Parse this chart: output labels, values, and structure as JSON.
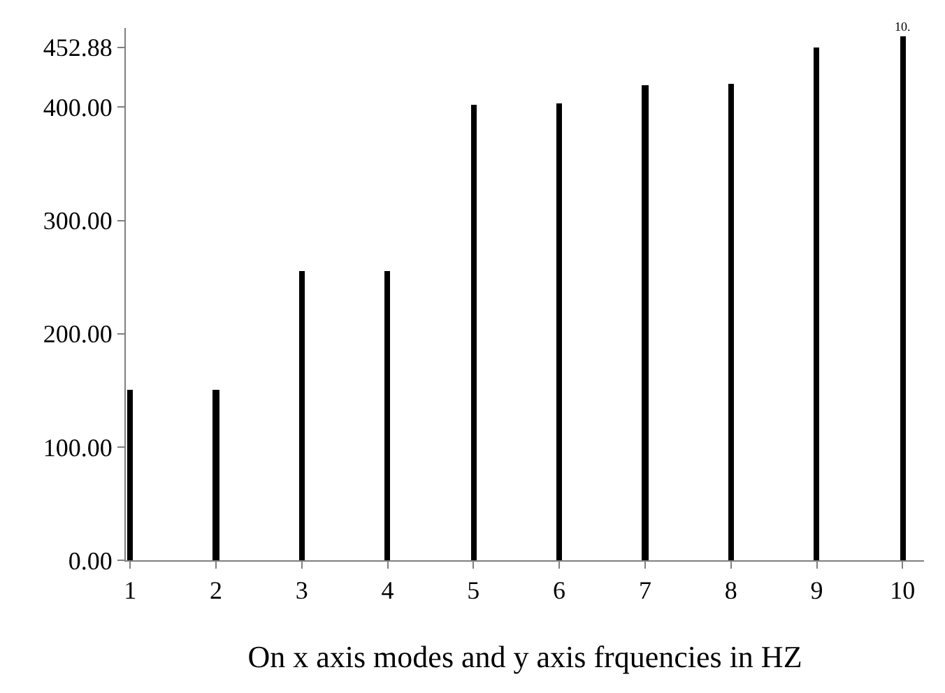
{
  "chart_data": {
    "type": "bar",
    "xlabel": "On x axis modes and y axis frquencies in HZ",
    "categories": [
      "1",
      "2",
      "3",
      "4",
      "5",
      "6",
      "7",
      "8",
      "9",
      "10"
    ],
    "values": [
      150,
      150,
      255,
      255,
      402,
      403,
      419,
      421,
      453,
      463
    ],
    "color": "#000000",
    "ylim": [
      0,
      470
    ],
    "yticks": [
      {
        "value": 0,
        "label": "0.00"
      },
      {
        "value": 100,
        "label": "100.00"
      },
      {
        "value": 200,
        "label": "200.00"
      },
      {
        "value": 300,
        "label": "300.00"
      },
      {
        "value": 400,
        "label": "400.00"
      },
      {
        "value": 452.88,
        "label": "452.88"
      }
    ],
    "annotations": [
      {
        "text": "10.",
        "x": "10",
        "y": 463
      }
    ]
  }
}
